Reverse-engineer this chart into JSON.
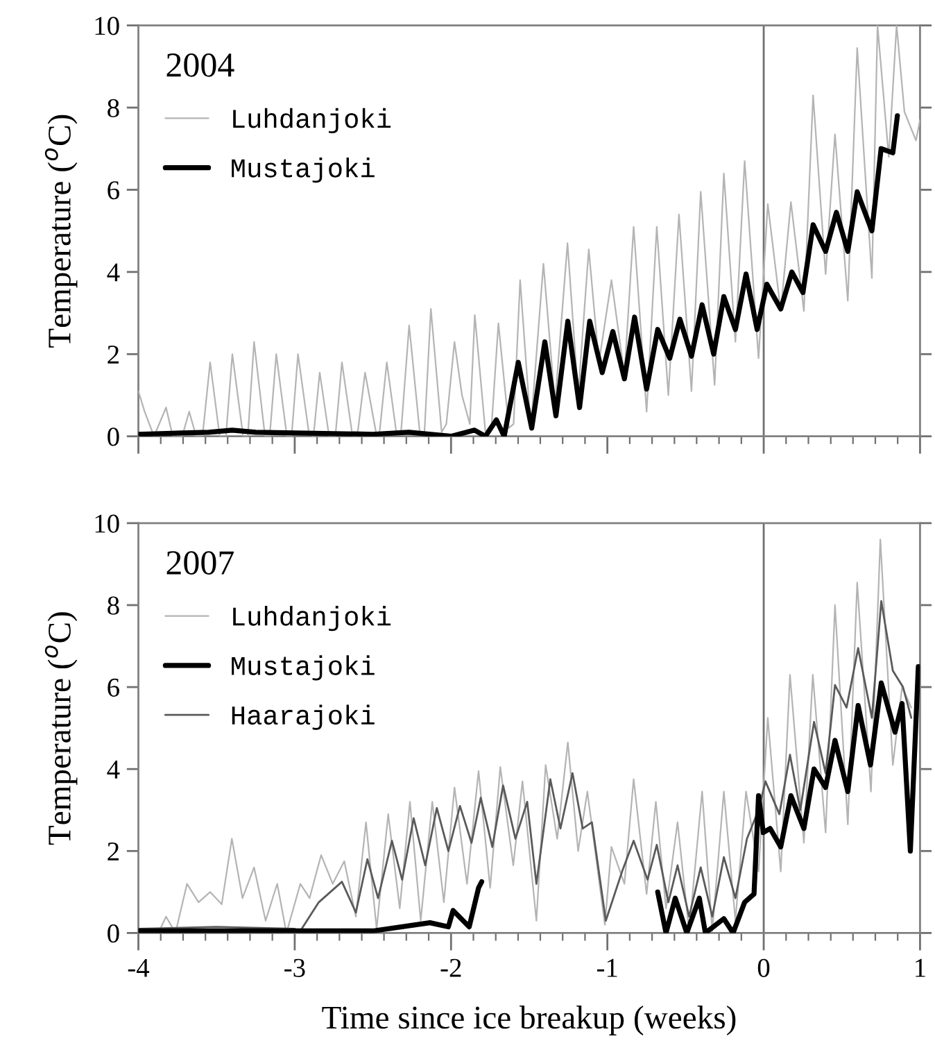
{
  "chart_data": [
    {
      "type": "line",
      "legend_title": "2004",
      "ylabel": "Temperature ($^{o}$C)",
      "xlim": [
        -4,
        1
      ],
      "ylim": [
        0,
        10
      ],
      "yticks": [
        0,
        2,
        4,
        6,
        8,
        10
      ],
      "xticks": [
        -4,
        {
          "value": -3.857,
          "label": null
        },
        {
          "value": -3.714,
          "label": null
        },
        {
          "value": -3.571,
          "label": null
        },
        {
          "value": -3.429,
          "label": null
        },
        {
          "value": -3.286,
          "label": null
        },
        {
          "value": -3.143,
          "label": null
        },
        -3,
        {
          "value": -2.857,
          "label": null
        },
        {
          "value": -2.714,
          "label": null
        },
        {
          "value": -2.571,
          "label": null
        },
        {
          "value": -2.429,
          "label": null
        },
        {
          "value": -2.286,
          "label": null
        },
        {
          "value": -2.143,
          "label": null
        },
        -2,
        {
          "value": -1.857,
          "label": null
        },
        {
          "value": -1.714,
          "label": null
        },
        {
          "value": -1.571,
          "label": null
        },
        {
          "value": -1.429,
          "label": null
        },
        {
          "value": -1.286,
          "label": null
        },
        {
          "value": -1.143,
          "label": null
        },
        -1,
        {
          "value": -0.857,
          "label": null
        },
        {
          "value": -0.714,
          "label": null
        },
        {
          "value": -0.571,
          "label": null
        },
        {
          "value": -0.429,
          "label": null
        },
        {
          "value": -0.286,
          "label": null
        },
        {
          "value": -0.143,
          "label": null
        },
        0,
        {
          "value": 0.143,
          "label": null
        },
        {
          "value": 0.286,
          "label": null
        },
        {
          "value": 0.429,
          "label": null
        },
        {
          "value": 0.571,
          "label": null
        },
        {
          "value": 0.714,
          "label": null
        },
        {
          "value": 0.857,
          "label": null
        },
        1
      ],
      "tick_labels": "y",
      "grid": false,
      "legend": "top left",
      "ref_lines": [
        {
          "axis": "x",
          "value": 0,
          "color": "#707070"
        }
      ],
      "series": [
        {
          "name": "Luhdanjoki",
          "color": "#b4b4b4",
          "x": [
            -4.0,
            -3.96,
            -3.9,
            -3.823,
            -3.78,
            -3.72,
            -3.675,
            -3.63,
            -3.59,
            -3.541,
            -3.48,
            -3.44,
            -3.399,
            -3.33,
            -3.3,
            -3.26,
            -3.19,
            -3.16,
            -3.118,
            -3.05,
            -3.02,
            -2.979,
            -2.91,
            -2.88,
            -2.84,
            -2.78,
            -2.74,
            -2.698,
            -2.63,
            -2.6,
            -2.55,
            -2.48,
            -2.46,
            -2.411,
            -2.35,
            -2.32,
            -2.268,
            -2.2,
            -2.17,
            -2.129,
            -2.06,
            -2.03,
            -1.978,
            -1.93,
            -1.88,
            -1.848,
            -1.78,
            -1.74,
            -1.697,
            -1.63,
            -1.6,
            -1.558,
            -1.49,
            -1.409,
            -1.335,
            -1.255,
            -1.187,
            -1.119,
            -1.054,
            -0.974,
            -0.891,
            -0.832,
            -0.749,
            -0.684,
            -0.61,
            -0.542,
            -0.462,
            -0.403,
            -0.314,
            -0.255,
            -0.181,
            -0.122,
            -0.033,
            0.026,
            0.109,
            0.174,
            0.257,
            0.316,
            0.396,
            0.456,
            0.538,
            0.598,
            0.692,
            0.728,
            0.8,
            0.85,
            0.9,
            0.974,
            1.0
          ],
          "values": [
            1.1,
            0.6,
            0,
            0.7,
            0,
            0,
            0.6,
            0,
            0,
            1.8,
            0,
            0,
            2.0,
            0,
            0,
            2.3,
            0,
            0,
            2.0,
            0,
            0,
            2.0,
            0.1,
            0,
            1.55,
            0,
            0,
            1.8,
            0,
            0,
            1.55,
            0.1,
            0,
            1.8,
            0.1,
            0.1,
            2.7,
            0.1,
            0.1,
            3.1,
            0.1,
            0.3,
            2.3,
            1.0,
            0.3,
            2.95,
            0.1,
            0.3,
            2.75,
            0.2,
            0.3,
            3.8,
            0.2,
            4.2,
            0.8,
            4.7,
            1.0,
            4.55,
            1.8,
            3.8,
            1.5,
            5.1,
            0.6,
            5.1,
            1.0,
            5.4,
            1.1,
            5.95,
            1.25,
            6.4,
            2.3,
            6.7,
            1.9,
            5.65,
            3.05,
            5.7,
            3.05,
            8.3,
            3.95,
            7.35,
            3.3,
            9.45,
            3.85,
            10,
            6.8,
            10,
            7.9,
            7.2,
            7.7
          ]
        },
        {
          "name": "Mustajoki",
          "color": "#000000",
          "x": [
            -4.0,
            -3.55,
            -3.4,
            -3.25,
            -2.5,
            -2.27,
            -2.0,
            -1.85,
            -1.78,
            -1.71,
            -1.66,
            -1.57,
            -1.484,
            -1.4,
            -1.329,
            -1.253,
            -1.178,
            -1.113,
            -1.033,
            -0.965,
            -0.891,
            -0.826,
            -0.749,
            -0.678,
            -0.601,
            -0.536,
            -0.462,
            -0.394,
            -0.32,
            -0.255,
            -0.181,
            -0.113,
            -0.042,
            0.02,
            0.109,
            0.18,
            0.251,
            0.316,
            0.396,
            0.465,
            0.538,
            0.598,
            0.692,
            0.751,
            0.826,
            0.855
          ],
          "values": [
            0.05,
            0.1,
            0.15,
            0.1,
            0.05,
            0.1,
            0.0,
            0.15,
            0.0,
            0.4,
            0.0,
            1.8,
            0.2,
            2.3,
            0.5,
            2.8,
            0.7,
            2.8,
            1.55,
            2.55,
            1.4,
            2.9,
            1.15,
            2.6,
            1.9,
            2.85,
            1.95,
            3.2,
            2.0,
            3.4,
            2.6,
            3.95,
            2.6,
            3.7,
            3.1,
            4.0,
            3.5,
            5.15,
            4.5,
            5.45,
            4.5,
            5.95,
            5.0,
            7.0,
            6.9,
            7.8
          ]
        }
      ]
    },
    {
      "type": "line",
      "legend_title": "2007",
      "ylabel": "Temperature ($^{o}$C)",
      "xlabel": "Time since ice breakup (weeks)",
      "xlim": [
        -4,
        1
      ],
      "ylim": [
        0,
        10
      ],
      "yticks": [
        0,
        2,
        4,
        6,
        8,
        10
      ],
      "xticks": [
        -4,
        {
          "value": -3.857,
          "label": null
        },
        {
          "value": -3.714,
          "label": null
        },
        {
          "value": -3.571,
          "label": null
        },
        {
          "value": -3.429,
          "label": null
        },
        {
          "value": -3.286,
          "label": null
        },
        {
          "value": -3.143,
          "label": null
        },
        -3,
        {
          "value": -2.857,
          "label": null
        },
        {
          "value": -2.714,
          "label": null
        },
        {
          "value": -2.571,
          "label": null
        },
        {
          "value": -2.429,
          "label": null
        },
        {
          "value": -2.286,
          "label": null
        },
        {
          "value": -2.143,
          "label": null
        },
        -2,
        {
          "value": -1.857,
          "label": null
        },
        {
          "value": -1.714,
          "label": null
        },
        {
          "value": -1.571,
          "label": null
        },
        {
          "value": -1.429,
          "label": null
        },
        {
          "value": -1.286,
          "label": null
        },
        {
          "value": -1.143,
          "label": null
        },
        -1,
        {
          "value": -0.857,
          "label": null
        },
        {
          "value": -0.714,
          "label": null
        },
        {
          "value": -0.571,
          "label": null
        },
        {
          "value": -0.429,
          "label": null
        },
        {
          "value": -0.286,
          "label": null
        },
        {
          "value": -0.143,
          "label": null
        },
        0,
        {
          "value": 0.143,
          "label": null
        },
        {
          "value": 0.286,
          "label": null
        },
        {
          "value": 0.429,
          "label": null
        },
        {
          "value": 0.571,
          "label": null
        },
        {
          "value": 0.714,
          "label": null
        },
        {
          "value": 0.857,
          "label": null
        },
        1
      ],
      "grid": false,
      "legend": "top left",
      "ref_lines": [
        {
          "axis": "x",
          "value": 0,
          "color": "#707070"
        }
      ],
      "series": [
        {
          "name": "Luhdanjoki",
          "color": "#b4b4b4",
          "x": [
            -4.0,
            -3.86,
            -3.823,
            -3.763,
            -3.689,
            -3.615,
            -3.541,
            -3.467,
            -3.402,
            -3.334,
            -3.26,
            -3.186,
            -3.112,
            -3.053,
            -2.964,
            -2.905,
            -2.831,
            -2.757,
            -2.683,
            -2.609,
            -2.544,
            -2.476,
            -2.402,
            -2.328,
            -2.263,
            -2.194,
            -2.12,
            -2.046,
            -1.978,
            -1.898,
            -1.824,
            -1.75,
            -1.685,
            -1.602,
            -1.543,
            -1.454,
            -1.395,
            -1.321,
            -1.253,
            -1.187,
            -1.128,
            -1.016,
            -0.974,
            -0.891,
            -0.832,
            -0.749,
            -0.69,
            -0.625,
            -0.551,
            -0.477,
            -0.394,
            -0.329,
            -0.255,
            -0.181,
            -0.113,
            -0.033,
            0.026,
            0.109,
            0.168,
            0.257,
            0.314,
            0.396,
            0.456,
            0.538,
            0.598,
            0.686,
            0.746,
            0.826,
            0.885,
            0.944
          ],
          "values": [
            0.1,
            0.1,
            0.4,
            0.0,
            1.2,
            0.75,
            1.0,
            0.7,
            2.3,
            0.85,
            1.6,
            0.3,
            1.2,
            0.0,
            1.2,
            0.85,
            1.9,
            1.2,
            1.75,
            0.4,
            2.7,
            0.1,
            2.9,
            0.6,
            3.2,
            0.3,
            3.2,
            0.75,
            3.55,
            1.2,
            3.95,
            1.1,
            4.05,
            1.65,
            3.7,
            0.3,
            4.1,
            2.3,
            4.65,
            2.0,
            3.45,
            0.2,
            2.1,
            1.2,
            3.75,
            0.95,
            3.2,
            0.6,
            2.7,
            0.05,
            3.45,
            0.05,
            3.45,
            0.3,
            3.45,
            1.5,
            5.25,
            1.5,
            6.3,
            2.2,
            6.3,
            2.45,
            8.0,
            2.65,
            8.55,
            3.45,
            9.6,
            4.1,
            6.0,
            5.5
          ]
        },
        {
          "name": "Mustajoki",
          "color": "#000000",
          "x": [
            -4.0,
            -3.5,
            -3.0,
            -2.5,
            -2.135,
            -2.017,
            -1.987,
            -1.884,
            -1.824,
            -1.804,
            -1.75,
            -0.678,
            -0.625,
            -0.566,
            -0.492,
            -0.412,
            -0.373,
            -0.255,
            -0.196,
            -0.122,
            -0.062,
            -0.033,
            -0.003,
            0.041,
            0.109,
            0.174,
            0.257,
            0.322,
            0.396,
            0.456,
            0.538,
            0.604,
            0.683,
            0.752,
            0.84,
            0.885,
            0.938,
            0.989
          ],
          "values": [
            0.05,
            0.05,
            0.05,
            0.05,
            0.25,
            0.15,
            0.55,
            0.15,
            1.1,
            1.25,
            null,
            1.0,
            0.0,
            0.85,
            0.0,
            0.85,
            0.0,
            0.35,
            0.0,
            0.75,
            0.95,
            3.35,
            2.45,
            2.55,
            2.1,
            3.35,
            2.55,
            4.0,
            3.55,
            4.7,
            3.45,
            5.55,
            4.1,
            6.1,
            4.9,
            5.6,
            2.0,
            6.5
          ]
        },
        {
          "name": "Haarajoki",
          "color": "#5a5a5a",
          "x": [
            -4.0,
            -3.5,
            -3.0,
            -2.964,
            -2.846,
            -2.698,
            -2.609,
            -2.535,
            -2.467,
            -2.378,
            -2.313,
            -2.239,
            -2.165,
            -2.091,
            -2.017,
            -1.943,
            -1.869,
            -1.81,
            -1.736,
            -1.667,
            -1.588,
            -1.513,
            -1.454,
            -1.365,
            -1.3,
            -1.223,
            -1.158,
            -1.099,
            -1.01,
            -0.906,
            -0.832,
            -0.743,
            -0.684,
            -0.61,
            -0.551,
            -0.477,
            -0.403,
            -0.329,
            -0.255,
            -0.181,
            -0.107,
            -0.033,
            0.011,
            0.1,
            0.168,
            0.234,
            0.322,
            0.396,
            0.456,
            0.53,
            0.604,
            0.692,
            0.752,
            0.826,
            0.891,
            0.944
          ],
          "values": [
            0.1,
            0.15,
            0.1,
            0.05,
            0.75,
            1.25,
            0.5,
            1.8,
            0.85,
            2.25,
            1.3,
            2.8,
            1.65,
            3.05,
            2.0,
            3.1,
            2.2,
            3.3,
            2.1,
            3.6,
            2.3,
            3.2,
            1.2,
            3.75,
            2.55,
            3.9,
            2.55,
            2.7,
            0.3,
            1.5,
            2.25,
            1.3,
            2.15,
            0.75,
            1.65,
            0.4,
            1.6,
            0.4,
            1.85,
            0.85,
            2.3,
            3.0,
            3.7,
            2.9,
            4.35,
            3.0,
            5.15,
            3.9,
            6.05,
            5.5,
            6.95,
            5.25,
            8.1,
            6.4,
            6.0,
            5.25
          ]
        }
      ]
    }
  ]
}
